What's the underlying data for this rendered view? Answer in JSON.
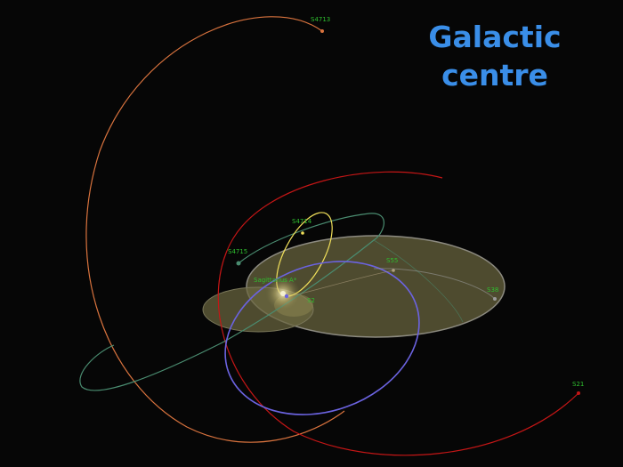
{
  "title": {
    "line1": "Galactic",
    "line2": "centre"
  },
  "labels": {
    "s4713": "S4713",
    "s4714": "S4714",
    "s4715": "S4715",
    "s55": "S55",
    "s38": "S38",
    "s2": "S2",
    "s21": "S21",
    "sgr_a": "Sagittarius A*"
  },
  "colors": {
    "background": "#060606",
    "title": "#3a8ee8",
    "label": "#2fbf2f",
    "orbit_s4713": "#d9733e",
    "orbit_s21": "#c41616",
    "orbit_s4715": "#4a8c70",
    "orbit_s4714": "#f0df5a",
    "orbit_s2": "#6b63e0",
    "orbit_s38": "#9a9a9a",
    "plane": "#6b6640"
  }
}
